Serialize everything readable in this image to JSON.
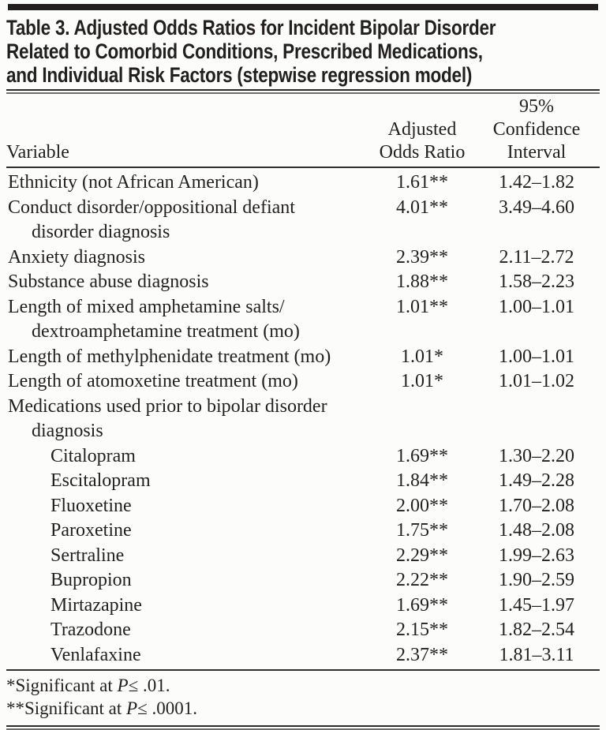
{
  "colors": {
    "background": "#fcfdfa",
    "ink": "#231f20"
  },
  "title": {
    "lines": [
      "Table 3. Adjusted Odds Ratios for Incident Bipolar Disorder",
      "Related to Comorbid Conditions, Prescribed Medications,",
      "and Individual Risk Factors (stepwise regression model)"
    ]
  },
  "columns": {
    "variable": "Variable",
    "aor_lines": [
      "Adjusted",
      "Odds Ratio"
    ],
    "ci_lines": [
      "95%",
      "Confidence",
      "Interval"
    ]
  },
  "rows": [
    {
      "label_lines": [
        "Ethnicity (not African American)"
      ],
      "indent": 0,
      "aor": "1.61**",
      "ci": "1.42–1.82"
    },
    {
      "label_lines": [
        "Conduct disorder/oppositional defiant",
        "disorder diagnosis"
      ],
      "indent": 0,
      "aor": "4.01**",
      "ci": "3.49–4.60"
    },
    {
      "label_lines": [
        "Anxiety diagnosis"
      ],
      "indent": 0,
      "aor": "2.39**",
      "ci": "2.11–2.72"
    },
    {
      "label_lines": [
        "Substance abuse diagnosis"
      ],
      "indent": 0,
      "aor": "1.88**",
      "ci": "1.58–2.23"
    },
    {
      "label_lines": [
        "Length of mixed amphetamine salts/",
        "dextroamphetamine treatment (mo)"
      ],
      "indent": 0,
      "aor": "1.01**",
      "ci": "1.00–1.01"
    },
    {
      "label_lines": [
        "Length of methylphenidate treatment (mo)"
      ],
      "indent": 0,
      "aor": "1.01*",
      "ci": "1.00–1.01"
    },
    {
      "label_lines": [
        "Length of atomoxetine treatment (mo)"
      ],
      "indent": 0,
      "aor": "1.01*",
      "ci": "1.01–1.02"
    },
    {
      "label_lines": [
        "Medications used prior to bipolar disorder",
        "diagnosis"
      ],
      "indent": 0,
      "aor": "",
      "ci": ""
    },
    {
      "label_lines": [
        "Citalopram"
      ],
      "indent": 1,
      "aor": "1.69**",
      "ci": "1.30–2.20"
    },
    {
      "label_lines": [
        "Escitalopram"
      ],
      "indent": 1,
      "aor": "1.84**",
      "ci": "1.49–2.28"
    },
    {
      "label_lines": [
        "Fluoxetine"
      ],
      "indent": 1,
      "aor": "2.00**",
      "ci": "1.70–2.08"
    },
    {
      "label_lines": [
        "Paroxetine"
      ],
      "indent": 1,
      "aor": "1.75**",
      "ci": "1.48–2.08"
    },
    {
      "label_lines": [
        "Sertraline"
      ],
      "indent": 1,
      "aor": "2.29**",
      "ci": "1.99–2.63"
    },
    {
      "label_lines": [
        "Bupropion"
      ],
      "indent": 1,
      "aor": "2.22**",
      "ci": "1.90–2.59"
    },
    {
      "label_lines": [
        "Mirtazapine"
      ],
      "indent": 1,
      "aor": "1.69**",
      "ci": "1.45–1.97"
    },
    {
      "label_lines": [
        "Trazodone"
      ],
      "indent": 1,
      "aor": "2.15**",
      "ci": "1.82–2.54"
    },
    {
      "label_lines": [
        "Venlafaxine"
      ],
      "indent": 1,
      "aor": "2.37**",
      "ci": "1.81–3.11"
    }
  ],
  "footnotes": [
    {
      "prefix": "*Significant at ",
      "p": "P",
      "suffix": "≤ .01."
    },
    {
      "prefix": "**Significant at ",
      "p": "P",
      "suffix": "≤ .0001."
    }
  ]
}
